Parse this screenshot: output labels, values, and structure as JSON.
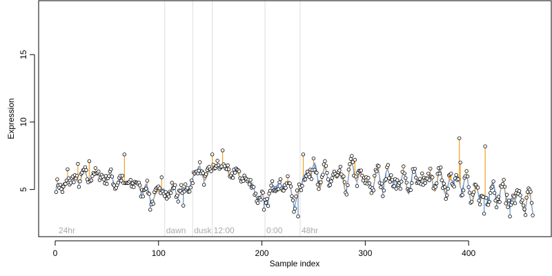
{
  "chart_data": {
    "type": "line",
    "title": "",
    "xlabel": "Sample index",
    "ylabel": "Expression",
    "xlim": [
      -16,
      480
    ],
    "ylim": [
      1.5,
      19
    ],
    "x_ticks": [
      0,
      100,
      200,
      300,
      400
    ],
    "y_ticks": [
      5,
      10,
      15
    ],
    "grid": false,
    "legend": "none",
    "colors": {
      "fit": "#5b7fbf",
      "residual_high": "#f0a020",
      "residual_low": "#5a8fd0",
      "point_fill": "#ffffff",
      "point_stroke": "#000000",
      "annotation_line": "#dddddd",
      "annotation_text": "#aaaaaa"
    },
    "annotations": [
      {
        "x": 2,
        "label": "24hr"
      },
      {
        "x": 106,
        "label": "dawn"
      },
      {
        "x": 133,
        "label": "dusk"
      },
      {
        "x": 152,
        "label": "12:00"
      },
      {
        "x": 203,
        "label": "0:00"
      },
      {
        "x": 237,
        "label": "48hr"
      }
    ],
    "fit_anchors": [
      [
        0,
        4.9
      ],
      [
        10,
        5.4
      ],
      [
        20,
        5.8
      ],
      [
        30,
        6.0
      ],
      [
        40,
        6.1
      ],
      [
        50,
        5.9
      ],
      [
        60,
        5.6
      ],
      [
        70,
        5.5
      ],
      [
        80,
        5.3
      ],
      [
        88,
        5.0
      ],
      [
        93,
        4.2
      ],
      [
        100,
        4.9
      ],
      [
        110,
        4.8
      ],
      [
        120,
        4.9
      ],
      [
        130,
        5.0
      ],
      [
        134,
        6.3
      ],
      [
        140,
        6.3
      ],
      [
        148,
        6.0
      ],
      [
        155,
        6.9
      ],
      [
        160,
        6.7
      ],
      [
        170,
        6.2
      ],
      [
        180,
        6.1
      ],
      [
        190,
        5.3
      ],
      [
        198,
        4.3
      ],
      [
        203,
        4.0
      ],
      [
        210,
        5.1
      ],
      [
        220,
        5.5
      ],
      [
        228,
        5.0
      ],
      [
        235,
        3.9
      ],
      [
        240,
        6.2
      ],
      [
        250,
        6.3
      ],
      [
        260,
        5.8
      ],
      [
        270,
        6.0
      ],
      [
        280,
        5.6
      ],
      [
        290,
        6.5
      ],
      [
        300,
        5.4
      ],
      [
        310,
        5.7
      ],
      [
        320,
        5.9
      ],
      [
        330,
        5.6
      ],
      [
        340,
        5.5
      ],
      [
        350,
        5.9
      ],
      [
        360,
        5.6
      ],
      [
        370,
        5.7
      ],
      [
        380,
        5.3
      ],
      [
        390,
        5.9
      ],
      [
        400,
        5.0
      ],
      [
        410,
        4.4
      ],
      [
        420,
        4.7
      ],
      [
        430,
        4.9
      ],
      [
        440,
        4.3
      ],
      [
        450,
        4.4
      ],
      [
        462,
        3.7
      ]
    ],
    "spikes": [
      [
        12,
        6.5
      ],
      [
        22,
        6.9
      ],
      [
        33,
        7.1
      ],
      [
        67,
        7.6
      ],
      [
        103,
        5.9
      ],
      [
        152,
        7.6
      ],
      [
        162,
        7.9
      ],
      [
        240,
        7.6
      ],
      [
        250,
        7.3
      ],
      [
        290,
        7.2
      ],
      [
        391,
        8.8
      ],
      [
        392,
        7.0
      ],
      [
        416,
        8.2
      ]
    ],
    "dips": [
      [
        92,
        3.5
      ],
      [
        124,
        3.8
      ],
      [
        202,
        3.5
      ],
      [
        235,
        3.0
      ],
      [
        415,
        3.2
      ],
      [
        440,
        3.0
      ],
      [
        455,
        3.1
      ]
    ],
    "n_points": 462
  }
}
